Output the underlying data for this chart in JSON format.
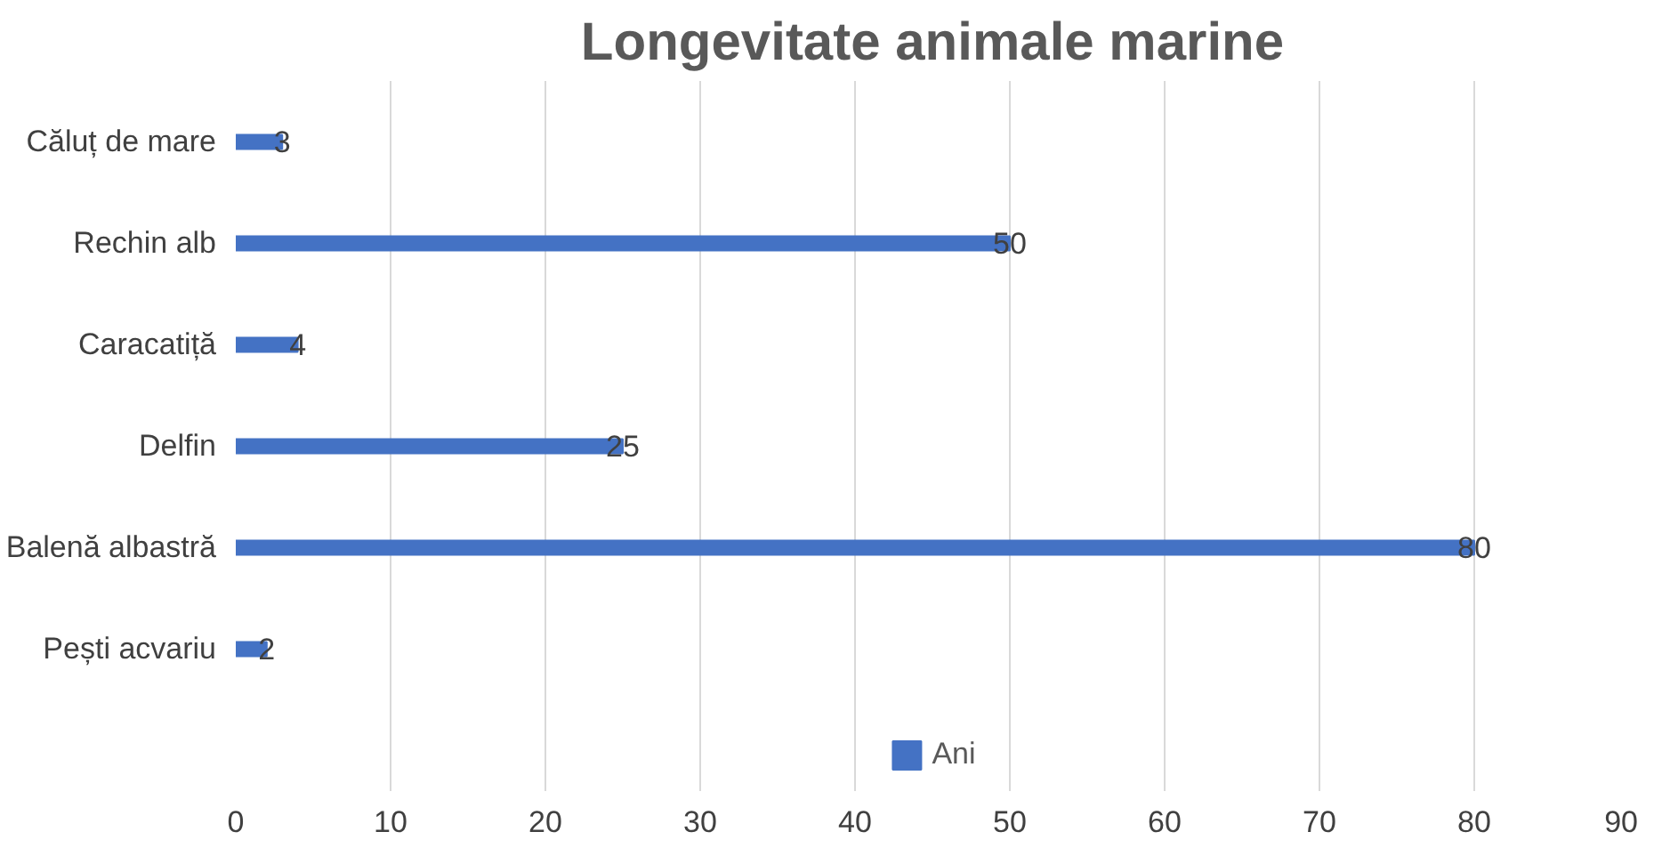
{
  "chart_data": {
    "type": "bar",
    "orientation": "horizontal",
    "title": "Longevitate animale marine",
    "categories": [
      "Căluț de mare",
      "Rechin alb",
      "Caracatiță",
      "Delfin",
      "Balenă albastră",
      "Pești acvariu"
    ],
    "series": [
      {
        "name": "Ani",
        "color": "#4472c4",
        "values": [
          3,
          50,
          4,
          25,
          80,
          2
        ]
      }
    ],
    "xlim": [
      0,
      90
    ],
    "xticks": [
      0,
      10,
      20,
      30,
      40,
      50,
      60,
      70,
      80,
      90
    ],
    "grid": "x",
    "data_labels": true,
    "legend": "bottom"
  }
}
